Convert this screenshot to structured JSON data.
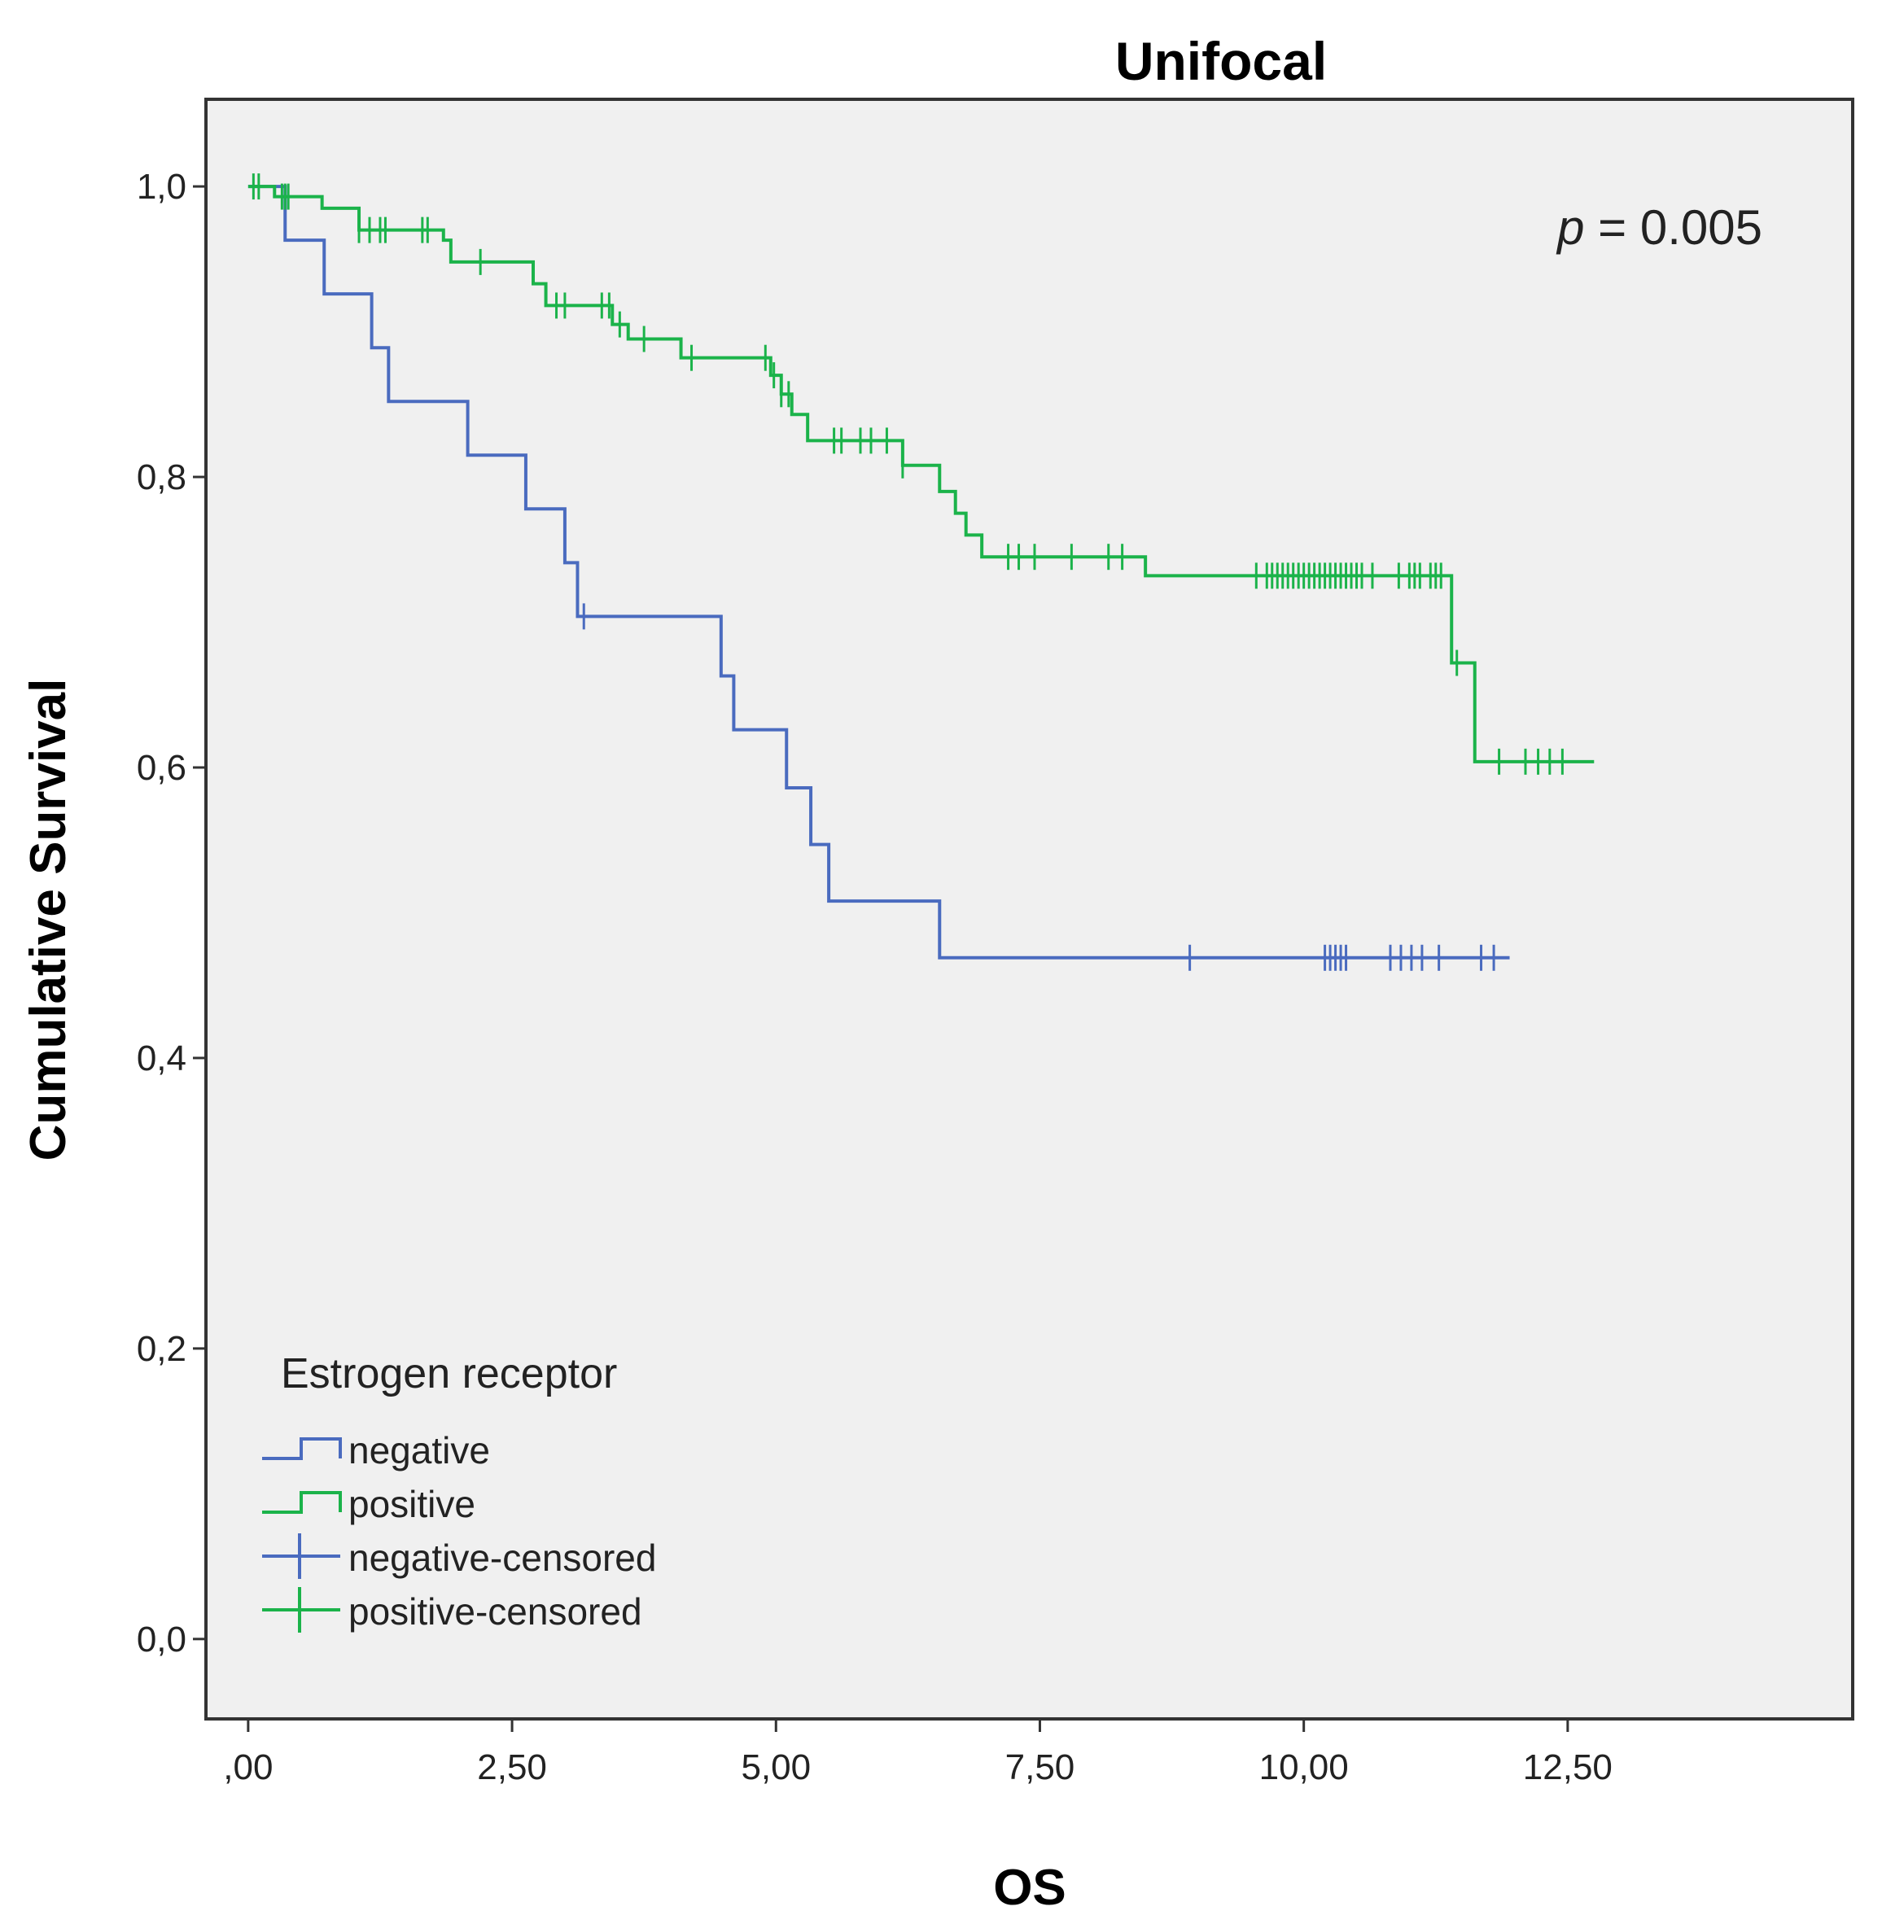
{
  "chart_data": {
    "type": "line",
    "subtype": "kaplan-meier-step",
    "title": "Unifocal",
    "xlabel": "OS",
    "ylabel": "Cumulative Survival",
    "xlim": [
      -0.4,
      15.2
    ],
    "ylim": [
      -0.055,
      1.06
    ],
    "x_ticks": [
      0,
      2.5,
      5,
      7.5,
      10,
      12.5
    ],
    "x_tick_labels": [
      ",00",
      "2,50",
      "5,00",
      "7,50",
      "10,00",
      "12,50"
    ],
    "y_ticks": [
      0,
      0.2,
      0.4,
      0.6,
      0.8,
      1.0
    ],
    "y_tick_labels": [
      "0,0",
      "0,2",
      "0,4",
      "0,6",
      "0,8",
      "1,0"
    ],
    "grid": false,
    "annotation": {
      "italic": "p",
      "text": " = 0.005",
      "position": "top-right"
    },
    "legend": {
      "title": "Estrogen receptor",
      "position": "bottom-left",
      "entries": [
        {
          "label": "negative",
          "kind": "step",
          "series": "negative"
        },
        {
          "label": "positive",
          "kind": "step",
          "series": "positive"
        },
        {
          "label": "negative-censored",
          "kind": "censor",
          "series": "negative"
        },
        {
          "label": "positive-censored",
          "kind": "censor",
          "series": "positive"
        }
      ]
    },
    "series": [
      {
        "name": "negative",
        "color": "#4a6bbf",
        "steps": [
          [
            0,
            1.0
          ],
          [
            0.35,
            0.963
          ],
          [
            0.72,
            0.926
          ],
          [
            1.17,
            0.889
          ],
          [
            1.33,
            0.852
          ],
          [
            2.08,
            0.815
          ],
          [
            2.63,
            0.778
          ],
          [
            3.0,
            0.741
          ],
          [
            3.12,
            0.704
          ],
          [
            4.48,
            0.663
          ],
          [
            4.6,
            0.626
          ],
          [
            5.1,
            0.586
          ],
          [
            5.33,
            0.547
          ],
          [
            5.5,
            0.508
          ],
          [
            6.55,
            0.469
          ]
        ],
        "end_x": 11.95,
        "censored": [
          3.18,
          8.92,
          10.2,
          10.25,
          10.3,
          10.35,
          10.4,
          10.82,
          10.92,
          11.02,
          11.12,
          11.28,
          11.68,
          11.8
        ]
      },
      {
        "name": "positive",
        "color": "#1bb34a",
        "steps": [
          [
            0,
            1.0
          ],
          [
            0.25,
            0.993
          ],
          [
            0.7,
            0.985
          ],
          [
            1.05,
            0.97
          ],
          [
            1.85,
            0.963
          ],
          [
            1.92,
            0.948
          ],
          [
            2.7,
            0.933
          ],
          [
            2.82,
            0.918
          ],
          [
            3.45,
            0.905
          ],
          [
            3.6,
            0.895
          ],
          [
            4.1,
            0.882
          ],
          [
            4.95,
            0.87
          ],
          [
            5.05,
            0.857
          ],
          [
            5.15,
            0.843
          ],
          [
            5.3,
            0.825
          ],
          [
            6.2,
            0.808
          ],
          [
            6.55,
            0.79
          ],
          [
            6.7,
            0.775
          ],
          [
            6.8,
            0.76
          ],
          [
            6.95,
            0.745
          ],
          [
            8.5,
            0.732
          ],
          [
            11.4,
            0.672
          ],
          [
            11.62,
            0.604
          ]
        ],
        "end_x": 12.75,
        "censored": [
          0.05,
          0.1,
          0.32,
          0.35,
          0.38,
          1.05,
          1.15,
          1.25,
          1.3,
          1.65,
          1.7,
          2.2,
          2.92,
          3.0,
          3.35,
          3.42,
          3.52,
          3.75,
          4.2,
          4.9,
          4.98,
          5.05,
          5.12,
          5.55,
          5.62,
          5.8,
          5.9,
          6.05,
          6.2,
          7.2,
          7.3,
          7.45,
          7.8,
          8.15,
          8.28,
          9.55,
          9.65,
          9.7,
          9.75,
          9.8,
          9.85,
          9.9,
          9.95,
          10.0,
          10.05,
          10.1,
          10.15,
          10.2,
          10.25,
          10.3,
          10.35,
          10.4,
          10.45,
          10.5,
          10.55,
          10.65,
          10.9,
          11.0,
          11.05,
          11.1,
          11.2,
          11.25,
          11.3,
          11.45,
          11.85,
          12.1,
          12.22,
          12.33,
          12.45
        ]
      }
    ]
  }
}
